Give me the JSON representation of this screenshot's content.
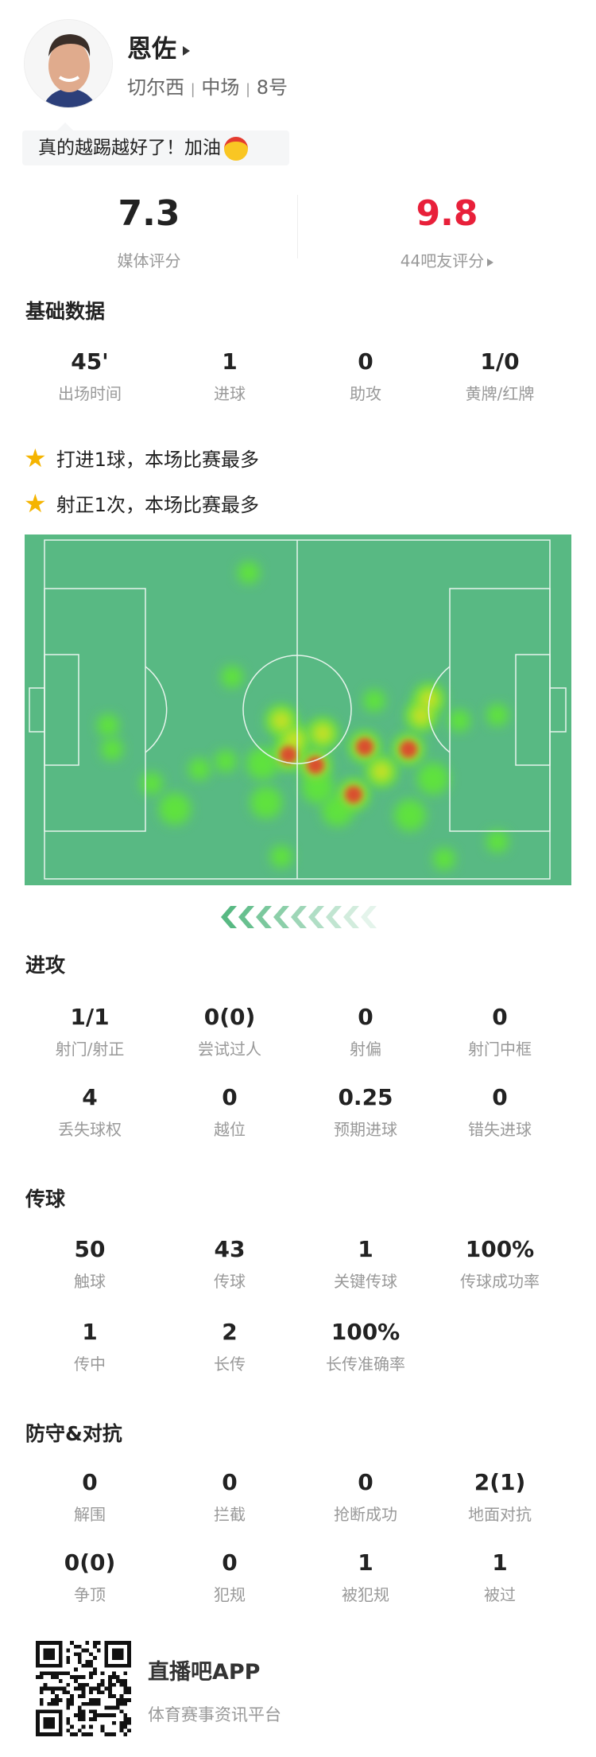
{
  "player": {
    "name": "恩佐",
    "team": "切尔西",
    "position": "中场",
    "number": "8号",
    "separator": "|"
  },
  "comment": {
    "text": "真的越踢越好了！加油",
    "emoji": "face-with-headband"
  },
  "ratings": {
    "media": {
      "value": "7.3",
      "label": "媒体评分"
    },
    "fans": {
      "value": "9.8",
      "label": "44吧友评分",
      "color": "#e8203a"
    }
  },
  "basic": {
    "title": "基础数据",
    "items": [
      {
        "value": "45'",
        "label": "出场时间"
      },
      {
        "value": "1",
        "label": "进球"
      },
      {
        "value": "0",
        "label": "助攻"
      },
      {
        "value": "1/0",
        "label": "黄牌/红牌"
      }
    ]
  },
  "highlights": [
    "打进1球，本场比赛最多",
    "射正1次，本场比赛最多"
  ],
  "attack": {
    "title": "进攻",
    "items": [
      {
        "value": "1/1",
        "label": "射门/射正"
      },
      {
        "value": "0(0)",
        "label": "尝试过人"
      },
      {
        "value": "0",
        "label": "射偏"
      },
      {
        "value": "0",
        "label": "射门中框"
      },
      {
        "value": "4",
        "label": "丢失球权"
      },
      {
        "value": "0",
        "label": "越位"
      },
      {
        "value": "0.25",
        "label": "预期进球"
      },
      {
        "value": "0",
        "label": "错失进球"
      }
    ]
  },
  "passing": {
    "title": "传球",
    "items": [
      {
        "value": "50",
        "label": "触球"
      },
      {
        "value": "43",
        "label": "传球"
      },
      {
        "value": "1",
        "label": "关键传球"
      },
      {
        "value": "100%",
        "label": "传球成功率"
      },
      {
        "value": "1",
        "label": "传中"
      },
      {
        "value": "2",
        "label": "长传"
      },
      {
        "value": "100%",
        "label": "长传准确率"
      }
    ]
  },
  "defense": {
    "title": "防守&对抗",
    "items": [
      {
        "value": "0",
        "label": "解围"
      },
      {
        "value": "0",
        "label": "拦截"
      },
      {
        "value": "0",
        "label": "抢断成功"
      },
      {
        "value": "2(1)",
        "label": "地面对抗"
      },
      {
        "value": "0(0)",
        "label": "争顶"
      },
      {
        "value": "0",
        "label": "犯规"
      },
      {
        "value": "1",
        "label": "被犯规"
      },
      {
        "value": "1",
        "label": "被过"
      }
    ]
  },
  "footer": {
    "app_name": "直播吧APP",
    "slogan": "体育赛事资讯平台"
  },
  "colors": {
    "pitch": "#58b983",
    "star": "#f5b400",
    "fan_rating": "#e8203a"
  }
}
